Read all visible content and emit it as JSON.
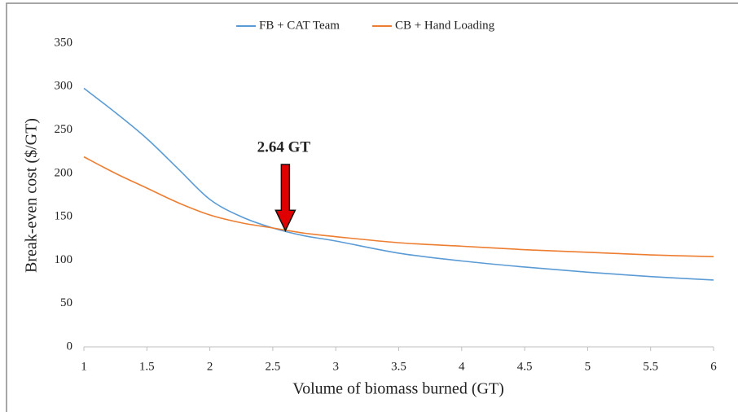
{
  "chart_data": {
    "type": "line",
    "xlabel": "Volume of biomass burned (GT)",
    "ylabel": "Break-even cost ($/GT)",
    "x": [
      1,
      1.25,
      1.5,
      1.75,
      2,
      2.25,
      2.5,
      2.75,
      3,
      3.5,
      4,
      4.5,
      5,
      5.5,
      6
    ],
    "series": [
      {
        "name": "FB + CAT Team",
        "color": "#5b9bd5",
        "values": [
          298,
          270,
          240,
          205,
          170,
          150,
          137,
          128,
          122,
          108,
          99,
          92,
          86,
          81,
          77
        ]
      },
      {
        "name": "CB + Hand Loading",
        "color": "#ed7d31",
        "values": [
          219,
          200,
          183,
          166,
          152,
          143,
          137,
          131,
          127,
          120,
          116,
          112,
          109,
          106,
          104
        ]
      }
    ],
    "xlim": [
      1,
      6
    ],
    "xticks": [
      1,
      1.5,
      2,
      2.5,
      3,
      3.5,
      4,
      4.5,
      5,
      5.5,
      6
    ],
    "ylim": [
      0,
      350
    ],
    "yticks": [
      0,
      50,
      100,
      150,
      200,
      250,
      300,
      350
    ],
    "grid": false,
    "legend": "top",
    "annotation": {
      "text": "2.64 GT",
      "x": 2.6,
      "y": 133,
      "color": "#e00000"
    }
  }
}
